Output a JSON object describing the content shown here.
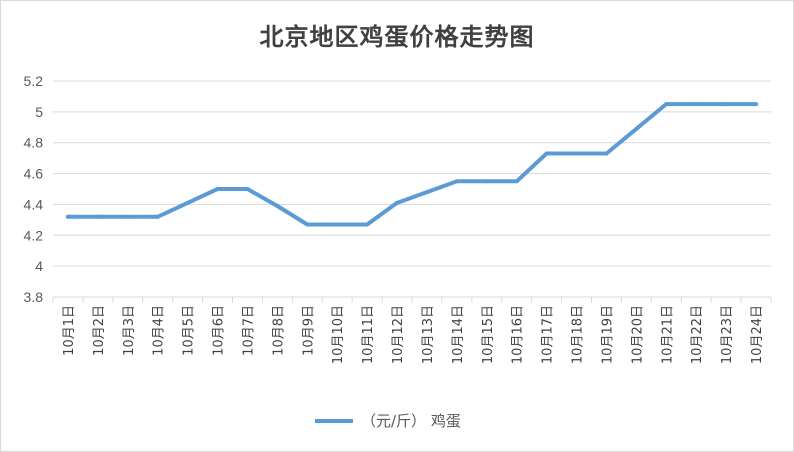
{
  "chart_data": {
    "type": "line",
    "title": "北京地区鸡蛋价格走势图",
    "xlabel": "",
    "ylabel": "",
    "categories": [
      "10月1日",
      "10月2日",
      "10月3日",
      "10月4日",
      "10月5日",
      "10月6日",
      "10月7日",
      "10月8日",
      "10月9日",
      "10月10日",
      "10月11日",
      "10月12日",
      "10月13日",
      "10月14日",
      "10月15日",
      "10月16日",
      "10月17日",
      "10月18日",
      "10月19日",
      "10月20日",
      "10月21日",
      "10月22日",
      "10月23日",
      "10月24日"
    ],
    "series": [
      {
        "name": "（元/斤） 鸡蛋",
        "values": [
          4.32,
          4.32,
          4.32,
          4.32,
          4.41,
          4.5,
          4.5,
          4.39,
          4.27,
          4.27,
          4.27,
          4.41,
          4.48,
          4.55,
          4.55,
          4.55,
          4.73,
          4.73,
          4.73,
          4.89,
          5.05,
          5.05,
          5.05,
          5.05
        ],
        "color": "#5b9bd5"
      }
    ],
    "ylim": [
      3.8,
      5.2
    ],
    "yticks": [
      "3.8",
      "4",
      "4.2",
      "4.4",
      "4.6",
      "4.8",
      "5",
      "5.2"
    ],
    "grid": true,
    "legend": "bottom"
  }
}
